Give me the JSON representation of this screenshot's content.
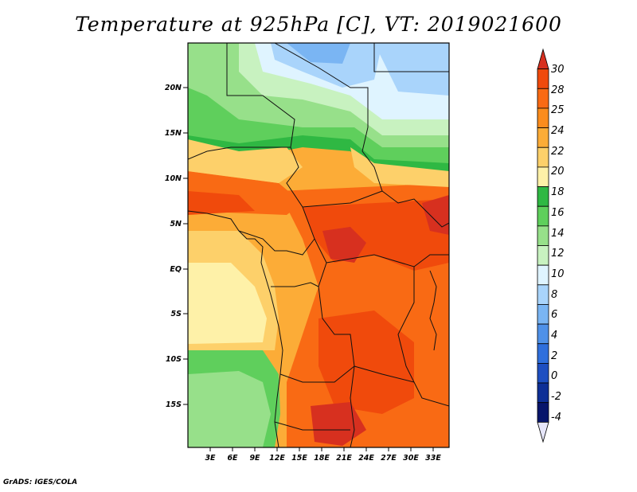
{
  "title": "Temperature at 925hPa [C], VT: 2019021600",
  "credit": "GrADS: IGES/COLA",
  "map": {
    "lat_labels": [
      "20N",
      "15N",
      "10N",
      "5N",
      "EQ",
      "5S",
      "10S",
      "15S"
    ],
    "lon_labels": [
      "3E",
      "6E",
      "9E",
      "12E",
      "15E",
      "18E",
      "21E",
      "24E",
      "27E",
      "30E",
      "33E"
    ]
  },
  "colorbar": {
    "levels": [
      "30",
      "28",
      "25",
      "24",
      "22",
      "20",
      "18",
      "16",
      "14",
      "12",
      "10",
      "8",
      "6",
      "4",
      "2",
      "0",
      "-2",
      "-4"
    ],
    "colors": [
      "#d7301f",
      "#f04a0c",
      "#f96a14",
      "#fb8c1d",
      "#fcac37",
      "#fdd06a",
      "#fef1a8",
      "#2fb843",
      "#5fcf5c",
      "#97e08a",
      "#c8f2c0",
      "#dff4ff",
      "#a9d4fb",
      "#7ab5f3",
      "#4f91e8",
      "#2f6fdc",
      "#1e4fc1",
      "#0e2f96",
      "#07156b",
      "#e6e6fa"
    ]
  }
}
